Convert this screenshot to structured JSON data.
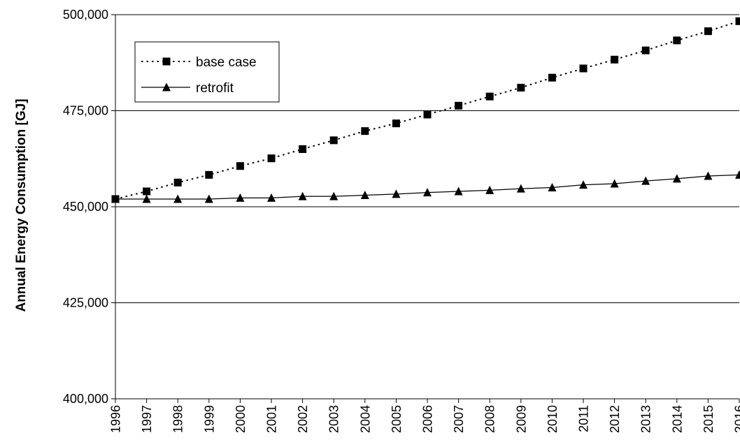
{
  "chart_data": {
    "type": "line",
    "title": "",
    "xlabel": "",
    "ylabel": "Annual Energy Consumption [GJ]",
    "x": [
      1996,
      1997,
      1998,
      1999,
      2000,
      2001,
      2002,
      2003,
      2004,
      2005,
      2006,
      2007,
      2008,
      2009,
      2010,
      2011,
      2012,
      2013,
      2014,
      2015,
      2016
    ],
    "x_tick_labels": [
      "1996",
      "1997",
      "1998",
      "1999",
      "2000",
      "2001",
      "2002",
      "2003",
      "2004",
      "2005",
      "2006",
      "2007",
      "2008",
      "2009",
      "2010",
      "2011",
      "2012",
      "2013",
      "2014",
      "2015",
      "2016"
    ],
    "ylim": [
      400000,
      500000
    ],
    "y_ticks": [
      400000,
      425000,
      450000,
      475000,
      500000
    ],
    "y_tick_labels": [
      "400,000",
      "425,000",
      "450,000",
      "475,000",
      "500,000"
    ],
    "grid": "horizontal",
    "legend_position": "top-left",
    "series": [
      {
        "name": "base case",
        "line_style": "dotted",
        "marker": "square",
        "color": "#000000",
        "values": [
          452000,
          454000,
          456300,
          458300,
          460600,
          462600,
          465000,
          467300,
          469700,
          471700,
          474000,
          476300,
          478700,
          481000,
          483600,
          486000,
          488300,
          490700,
          493300,
          495700,
          498300
        ]
      },
      {
        "name": "retrofit",
        "line_style": "solid",
        "marker": "triangle",
        "color": "#000000",
        "values": [
          452000,
          452000,
          452000,
          452000,
          452300,
          452300,
          452700,
          452700,
          453000,
          453300,
          453700,
          454000,
          454300,
          454700,
          455000,
          455700,
          456000,
          456700,
          457300,
          458000,
          458300
        ]
      }
    ]
  }
}
